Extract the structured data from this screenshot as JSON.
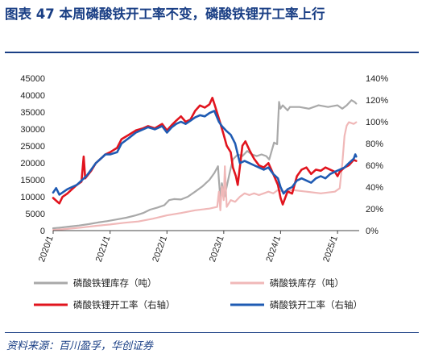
{
  "header": {
    "title": "图表 47    本周磷酸铁开工率不变，磷酸铁锂开工率上行"
  },
  "footer": {
    "source": "资料来源：百川盈孚，华创证券"
  },
  "chart_data": {
    "type": "line",
    "title": "",
    "y_left": {
      "ticks": [
        "45000",
        "40000",
        "35000",
        "30000",
        "25000",
        "20000",
        "15000",
        "10000",
        "5000",
        "0"
      ],
      "ylim": [
        0,
        45000
      ]
    },
    "y_right": {
      "ticks": [
        "140%",
        "120%",
        "100%",
        "80%",
        "60%",
        "40%",
        "20%",
        "0%"
      ],
      "ylim": [
        0,
        140
      ]
    },
    "x_ticks": [
      "2020/1",
      "2021/1",
      "2022/1",
      "2023/1",
      "2024/1",
      "2025/1"
    ],
    "x_domain": [
      "2020-01",
      "2025-05"
    ],
    "legend_position": "bottom",
    "series": [
      {
        "name": "磷酸铁锂库存（吨）",
        "axis": "left",
        "color": "#a9a9a9",
        "width": 2.2,
        "points": [
          [
            "2020-01-01",
            700
          ],
          [
            "2020-02-20",
            900
          ],
          [
            "2020-04-15",
            1200
          ],
          [
            "2020-06-15",
            1500
          ],
          [
            "2020-08-15",
            1900
          ],
          [
            "2020-10-15",
            2400
          ],
          [
            "2020-12-15",
            2800
          ],
          [
            "2021-02-15",
            3300
          ],
          [
            "2021-04-15",
            3800
          ],
          [
            "2021-06-15",
            4500
          ],
          [
            "2021-08-01",
            5200
          ],
          [
            "2021-09-15",
            6200
          ],
          [
            "2021-11-01",
            6800
          ],
          [
            "2021-12-15",
            7500
          ],
          [
            "2022-01-15",
            9000
          ],
          [
            "2022-02-15",
            9300
          ],
          [
            "2022-04-01",
            9200
          ],
          [
            "2022-05-15",
            10000
          ],
          [
            "2022-07-01",
            11500
          ],
          [
            "2022-08-15",
            13000
          ],
          [
            "2022-10-01",
            15000
          ],
          [
            "2022-11-01",
            17000
          ],
          [
            "2022-11-25",
            19000
          ],
          [
            "2022-12-01",
            15000
          ],
          [
            "2022-12-10",
            9500
          ],
          [
            "2022-12-20",
            14000
          ],
          [
            "2023-01-05",
            10000
          ],
          [
            "2023-01-20",
            13000
          ],
          [
            "2023-02-10",
            17500
          ],
          [
            "2023-03-01",
            21000
          ],
          [
            "2023-04-01",
            22500
          ],
          [
            "2023-05-01",
            22000
          ],
          [
            "2023-06-01",
            23500
          ],
          [
            "2023-07-01",
            22500
          ],
          [
            "2023-08-01",
            22000
          ],
          [
            "2023-09-01",
            22500
          ],
          [
            "2023-10-01",
            22000
          ],
          [
            "2023-10-20",
            21000
          ],
          [
            "2023-11-20",
            26000
          ],
          [
            "2023-12-10",
            25500
          ],
          [
            "2023-12-22",
            38000
          ],
          [
            "2023-12-31",
            36000
          ],
          [
            "2024-01-15",
            37000
          ],
          [
            "2024-02-15",
            35500
          ],
          [
            "2024-03-01",
            36500
          ],
          [
            "2024-05-01",
            36500
          ],
          [
            "2024-07-01",
            36000
          ],
          [
            "2024-09-01",
            37000
          ],
          [
            "2024-11-01",
            36500
          ],
          [
            "2025-01-01",
            37000
          ],
          [
            "2025-02-01",
            36000
          ],
          [
            "2025-03-01",
            37000
          ],
          [
            "2025-04-01",
            38500
          ],
          [
            "2025-04-20",
            38000
          ],
          [
            "2025-05-01",
            37500
          ]
        ]
      },
      {
        "name": "磷酸铁库存（吨）",
        "axis": "left",
        "color": "#f0b8b8",
        "width": 2.2,
        "points": [
          [
            "2020-01-01",
            200
          ],
          [
            "2020-04-01",
            500
          ],
          [
            "2020-07-01",
            900
          ],
          [
            "2020-10-01",
            1400
          ],
          [
            "2021-01-01",
            1800
          ],
          [
            "2021-04-01",
            2300
          ],
          [
            "2021-07-01",
            2700
          ],
          [
            "2021-10-01",
            3500
          ],
          [
            "2022-01-01",
            4500
          ],
          [
            "2022-04-01",
            5200
          ],
          [
            "2022-07-01",
            6000
          ],
          [
            "2022-10-01",
            6500
          ],
          [
            "2022-11-20",
            7000
          ],
          [
            "2022-12-01",
            11500
          ],
          [
            "2022-12-10",
            6000
          ],
          [
            "2022-12-20",
            13000
          ],
          [
            "2023-01-01",
            9000
          ],
          [
            "2023-01-08",
            19000
          ],
          [
            "2023-01-20",
            7000
          ],
          [
            "2023-02-15",
            9000
          ],
          [
            "2023-03-15",
            8500
          ],
          [
            "2023-04-15",
            10000
          ],
          [
            "2023-05-15",
            11000
          ],
          [
            "2023-06-15",
            10500
          ],
          [
            "2023-07-15",
            11000
          ],
          [
            "2023-08-15",
            10500
          ],
          [
            "2023-09-15",
            11000
          ],
          [
            "2023-10-15",
            11500
          ],
          [
            "2023-11-15",
            11000
          ],
          [
            "2023-12-15",
            12000
          ],
          [
            "2024-01-15",
            11500
          ],
          [
            "2024-03-15",
            12000
          ],
          [
            "2024-06-15",
            11500
          ],
          [
            "2024-09-15",
            11000
          ],
          [
            "2024-12-15",
            11500
          ],
          [
            "2025-01-15",
            12500
          ],
          [
            "2025-02-01",
            20000
          ],
          [
            "2025-02-15",
            28000
          ],
          [
            "2025-03-01",
            31000
          ],
          [
            "2025-03-15",
            32000
          ],
          [
            "2025-04-15",
            31500
          ],
          [
            "2025-05-01",
            32000
          ]
        ]
      },
      {
        "name": "磷酸铁锂开工率（右轴）",
        "axis": "right",
        "color": "#e1141e",
        "width": 2.6,
        "points": [
          [
            "2020-01-01",
            30
          ],
          [
            "2020-02-01",
            26
          ],
          [
            "2020-02-10",
            25
          ],
          [
            "2020-03-01",
            31
          ],
          [
            "2020-04-01",
            34
          ],
          [
            "2020-05-01",
            38
          ],
          [
            "2020-06-01",
            42
          ],
          [
            "2020-07-01",
            45
          ],
          [
            "2020-07-15",
            68
          ],
          [
            "2020-07-25",
            48
          ],
          [
            "2020-09-01",
            55
          ],
          [
            "2020-10-01",
            62
          ],
          [
            "2020-11-01",
            66
          ],
          [
            "2020-12-01",
            70
          ],
          [
            "2021-01-01",
            72
          ],
          [
            "2021-02-15",
            76
          ],
          [
            "2021-03-15",
            84
          ],
          [
            "2021-05-01",
            88
          ],
          [
            "2021-06-15",
            92
          ],
          [
            "2021-08-01",
            94
          ],
          [
            "2021-09-01",
            96
          ],
          [
            "2021-10-15",
            94
          ],
          [
            "2021-12-01",
            98
          ],
          [
            "2022-01-01",
            92
          ],
          [
            "2022-02-01",
            97
          ],
          [
            "2022-03-01",
            101
          ],
          [
            "2022-04-01",
            105
          ],
          [
            "2022-05-01",
            100
          ],
          [
            "2022-06-01",
            102
          ],
          [
            "2022-07-01",
            110
          ],
          [
            "2022-08-01",
            115
          ],
          [
            "2022-09-01",
            113
          ],
          [
            "2022-10-01",
            116
          ],
          [
            "2022-10-20",
            122
          ],
          [
            "2022-11-05",
            115
          ],
          [
            "2022-11-20",
            108
          ],
          [
            "2022-12-15",
            96
          ],
          [
            "2023-01-01",
            88
          ],
          [
            "2023-01-20",
            78
          ],
          [
            "2023-02-15",
            72
          ],
          [
            "2023-03-01",
            58
          ],
          [
            "2023-03-20",
            50
          ],
          [
            "2023-04-01",
            42
          ],
          [
            "2023-05-01",
            78
          ],
          [
            "2023-05-20",
            82
          ],
          [
            "2023-06-15",
            74
          ],
          [
            "2023-07-15",
            66
          ],
          [
            "2023-08-15",
            60
          ],
          [
            "2023-09-15",
            58
          ],
          [
            "2023-10-15",
            62
          ],
          [
            "2023-11-15",
            52
          ],
          [
            "2023-12-15",
            42
          ],
          [
            "2024-01-01",
            30
          ],
          [
            "2024-01-15",
            24
          ],
          [
            "2024-02-15",
            36
          ],
          [
            "2024-03-15",
            34
          ],
          [
            "2024-04-15",
            50
          ],
          [
            "2024-05-15",
            56
          ],
          [
            "2024-06-15",
            58
          ],
          [
            "2024-07-15",
            52
          ],
          [
            "2024-08-15",
            56
          ],
          [
            "2024-09-15",
            55
          ],
          [
            "2024-10-15",
            58
          ],
          [
            "2024-11-15",
            56
          ],
          [
            "2024-12-15",
            54
          ],
          [
            "2025-01-01",
            50
          ],
          [
            "2025-01-15",
            54
          ],
          [
            "2025-02-15",
            58
          ],
          [
            "2025-03-15",
            60
          ],
          [
            "2025-04-15",
            65
          ],
          [
            "2025-05-01",
            64
          ]
        ]
      },
      {
        "name": "磷酸铁开工率（右轴）",
        "axis": "right",
        "color": "#1f5bb3",
        "width": 2.6,
        "points": [
          [
            "2020-01-01",
            35
          ],
          [
            "2020-01-20",
            39
          ],
          [
            "2020-02-10",
            33
          ],
          [
            "2020-03-01",
            35
          ],
          [
            "2020-04-01",
            38
          ],
          [
            "2020-05-01",
            40
          ],
          [
            "2020-06-01",
            42
          ],
          [
            "2020-07-01",
            46
          ],
          [
            "2020-08-01",
            50
          ],
          [
            "2020-09-01",
            56
          ],
          [
            "2020-10-01",
            62
          ],
          [
            "2020-11-01",
            66
          ],
          [
            "2020-12-01",
            70
          ],
          [
            "2021-01-01",
            70
          ],
          [
            "2021-02-15",
            72
          ],
          [
            "2021-03-15",
            80
          ],
          [
            "2021-05-01",
            85
          ],
          [
            "2021-06-15",
            90
          ],
          [
            "2021-08-01",
            93
          ],
          [
            "2021-09-01",
            95
          ],
          [
            "2021-10-15",
            93
          ],
          [
            "2021-12-01",
            96
          ],
          [
            "2022-01-01",
            90
          ],
          [
            "2022-02-01",
            95
          ],
          [
            "2022-03-01",
            98
          ],
          [
            "2022-04-01",
            100
          ],
          [
            "2022-05-01",
            98
          ],
          [
            "2022-06-01",
            101
          ],
          [
            "2022-07-01",
            104
          ],
          [
            "2022-08-01",
            106
          ],
          [
            "2022-09-01",
            105
          ],
          [
            "2022-10-01",
            108
          ],
          [
            "2022-11-01",
            110
          ],
          [
            "2022-12-01",
            100
          ],
          [
            "2022-12-20",
            96
          ],
          [
            "2023-01-15",
            92
          ],
          [
            "2023-02-15",
            88
          ],
          [
            "2023-03-15",
            80
          ],
          [
            "2023-04-15",
            62
          ],
          [
            "2023-05-15",
            64
          ],
          [
            "2023-06-15",
            62
          ],
          [
            "2023-07-15",
            60
          ],
          [
            "2023-08-15",
            58
          ],
          [
            "2023-09-15",
            56
          ],
          [
            "2023-10-15",
            58
          ],
          [
            "2023-11-15",
            52
          ],
          [
            "2023-12-15",
            48
          ],
          [
            "2024-01-01",
            40
          ],
          [
            "2024-01-20",
            34
          ],
          [
            "2024-02-15",
            38
          ],
          [
            "2024-03-15",
            40
          ],
          [
            "2024-04-15",
            46
          ],
          [
            "2024-05-15",
            48
          ],
          [
            "2024-06-15",
            46
          ],
          [
            "2024-07-15",
            44
          ],
          [
            "2024-08-15",
            48
          ],
          [
            "2024-09-15",
            50
          ],
          [
            "2024-10-15",
            48
          ],
          [
            "2024-11-15",
            52
          ],
          [
            "2024-12-15",
            54
          ],
          [
            "2025-01-15",
            56
          ],
          [
            "2025-02-15",
            58
          ],
          [
            "2025-03-15",
            62
          ],
          [
            "2025-04-15",
            66
          ],
          [
            "2025-04-25",
            70
          ],
          [
            "2025-05-01",
            68
          ]
        ]
      }
    ]
  }
}
